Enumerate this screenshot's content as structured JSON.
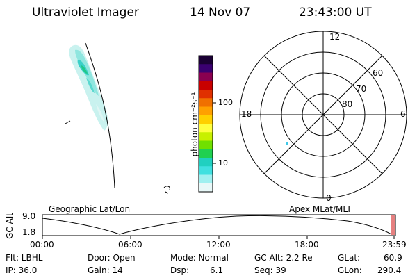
{
  "header": {
    "title": "Ultraviolet Imager",
    "date": "14 Nov 07",
    "time": "23:43:00 UT"
  },
  "colorbar": {
    "label": "photon cm⁻²s⁻¹",
    "ticks": [
      "100",
      "10"
    ],
    "colors": [
      "#1a0033",
      "#3a0070",
      "#8a0050",
      "#c80000",
      "#e03000",
      "#f07000",
      "#ffa000",
      "#ffd000",
      "#ffff40",
      "#c8f000",
      "#70e000",
      "#20d050",
      "#20d0c0",
      "#40e0e0",
      "#a0f0f0",
      "#e8f8f8"
    ]
  },
  "polar": {
    "hour_labels": {
      "top": "12",
      "left": "18",
      "right": "6",
      "bottom": "0"
    },
    "lat_labels": [
      "60",
      "70",
      "80"
    ]
  },
  "timeline": {
    "left_title": "Geographic Lat/Lon",
    "right_title": "Apex MLat/MLT",
    "axis_label": "GC Alt",
    "y_top": "9.0",
    "y_bottom": "1.8",
    "x_ticks": [
      "00:00",
      "06:00",
      "12:00",
      "18:00",
      "23:59"
    ]
  },
  "status": {
    "flt": "Flt: LBHL",
    "ip": "IP: 36.0",
    "door": "Door: Open",
    "gain": "Gain: 14",
    "mode": "Mode: Normal",
    "dsp_label": "Dsp:",
    "dsp_value": "6.1",
    "gcalt": "GC Alt: 2.2 Re",
    "seq": "Seq: 39",
    "glat_label": "GLat:",
    "glat_value": "60.9",
    "glon_label": "GLon:",
    "glon_value": "290.4"
  }
}
